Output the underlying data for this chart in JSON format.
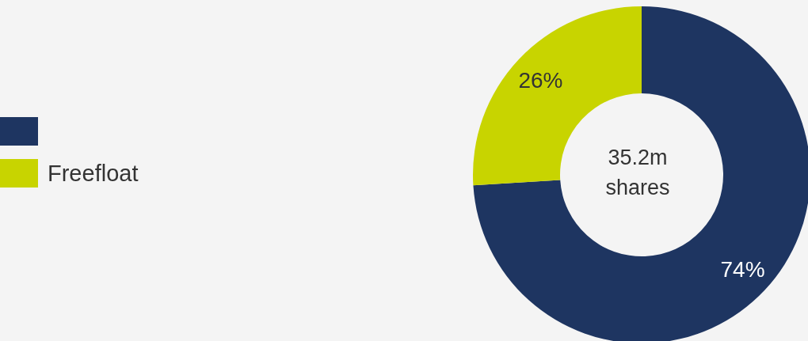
{
  "chart_data": {
    "type": "donut",
    "categories": [
      null,
      "Freefloat"
    ],
    "values": [
      74,
      26
    ],
    "colors": [
      "#1e3561",
      "#c8d400"
    ],
    "data_labels": true,
    "value_labels": [
      "74%",
      "26%"
    ],
    "legend": "left",
    "annotations": [
      "35.2m\nshares"
    ]
  }
}
